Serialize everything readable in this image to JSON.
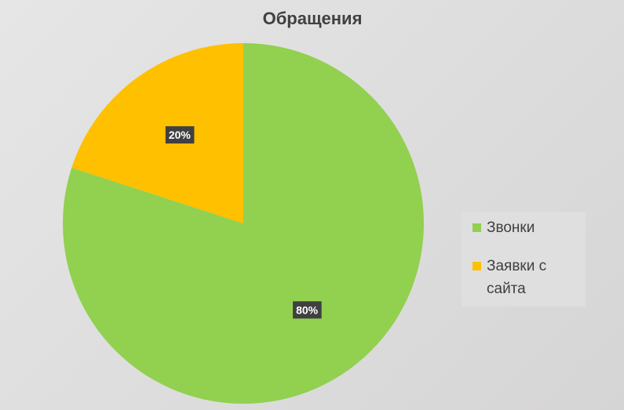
{
  "chart_data": {
    "type": "pie",
    "title": "Обращения",
    "categories": [
      "Звонки",
      "Заявки с сайта"
    ],
    "series": [
      {
        "values": [
          80,
          20
        ],
        "value_labels": [
          "80%",
          "20%"
        ],
        "colors": [
          "#92d050",
          "#ffc000"
        ]
      }
    ],
    "legend": "right"
  }
}
